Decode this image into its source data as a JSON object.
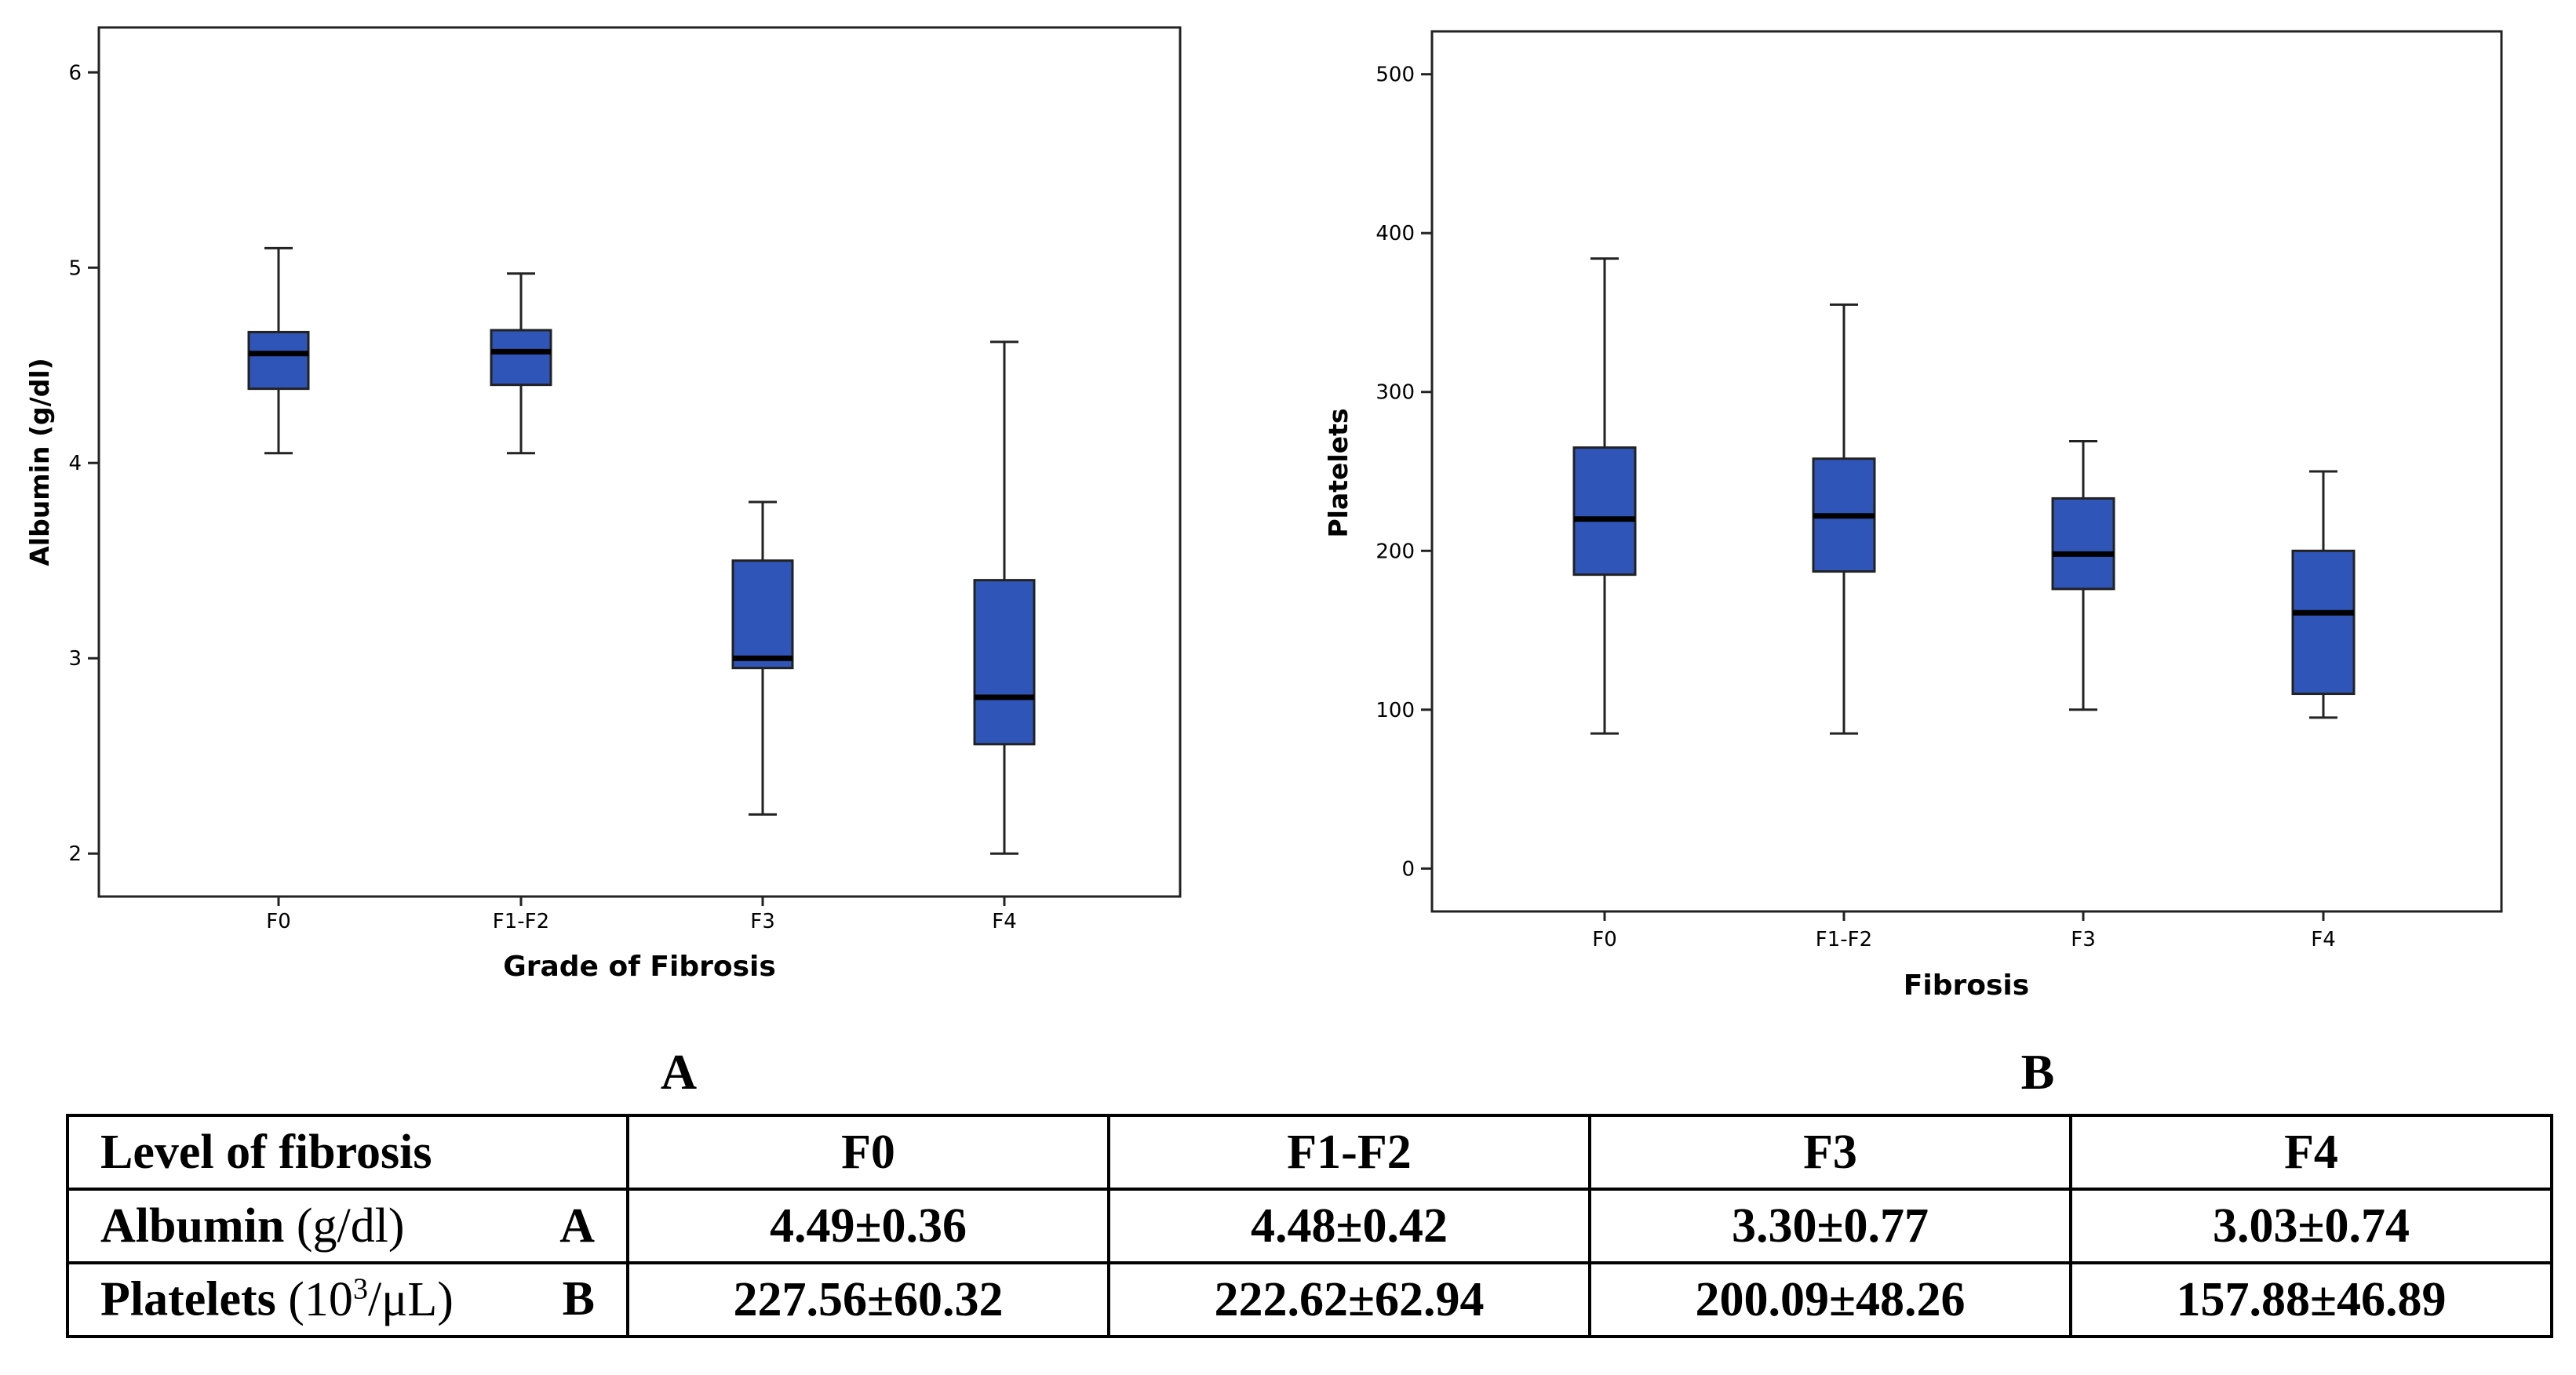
{
  "chart_data": [
    {
      "type": "boxplot",
      "panel": "A",
      "xlabel": "Grade of Fibrosis",
      "ylabel": "Albumin (g/dl)",
      "ylim": [
        1.78,
        6.23
      ],
      "yticks": [
        "2",
        "3",
        "4",
        "5",
        "6"
      ],
      "categories": [
        "F0",
        "F1-F2",
        "F3",
        "F4"
      ],
      "boxes": [
        {
          "min": 4.05,
          "q1": 4.38,
          "median": 4.56,
          "q3": 4.67,
          "max": 5.1
        },
        {
          "min": 4.05,
          "q1": 4.4,
          "median": 4.57,
          "q3": 4.68,
          "max": 4.97
        },
        {
          "min": 2.2,
          "q1": 2.95,
          "median": 3.0,
          "q3": 3.5,
          "max": 3.8
        },
        {
          "min": 2.0,
          "q1": 2.56,
          "median": 2.8,
          "q3": 3.4,
          "max": 4.62
        }
      ],
      "box_color": "#2f55b8"
    },
    {
      "type": "boxplot",
      "panel": "B",
      "xlabel": "Fibrosis",
      "ylabel": "Platelets",
      "ylim": [
        -27,
        527
      ],
      "yticks": [
        "0",
        "100",
        "200",
        "300",
        "400",
        "500"
      ],
      "categories": [
        "F0",
        "F1-F2",
        "F3",
        "F4"
      ],
      "boxes": [
        {
          "min": 85,
          "q1": 185,
          "median": 220,
          "q3": 265,
          "max": 384
        },
        {
          "min": 85,
          "q1": 187,
          "median": 222,
          "q3": 258,
          "max": 355
        },
        {
          "min": 100,
          "q1": 176,
          "median": 198,
          "q3": 233,
          "max": 269
        },
        {
          "min": 95,
          "q1": 110,
          "median": 161,
          "q3": 200,
          "max": 250
        }
      ],
      "box_color": "#2f55b8"
    }
  ],
  "panel_labels": {
    "a": "A",
    "b": "B"
  },
  "table": {
    "header": {
      "label": "Level of fibrosis",
      "cols": [
        "F0",
        "F1-F2",
        "F3",
        "F4"
      ]
    },
    "albumin": {
      "name": "Albumin",
      "unit": "(g/dl)",
      "tag": "A",
      "values": [
        "4.49±0.36",
        "4.48±0.42",
        "3.30±0.77",
        "3.03±0.74"
      ]
    },
    "platelets": {
      "name": "Platelets",
      "unit_pre": "(10",
      "unit_sup": "3",
      "unit_post": "/μL)",
      "tag": "B",
      "values": [
        "227.56±60.32",
        "222.62±62.94",
        "200.09±48.26",
        "157.88±46.89"
      ]
    }
  }
}
